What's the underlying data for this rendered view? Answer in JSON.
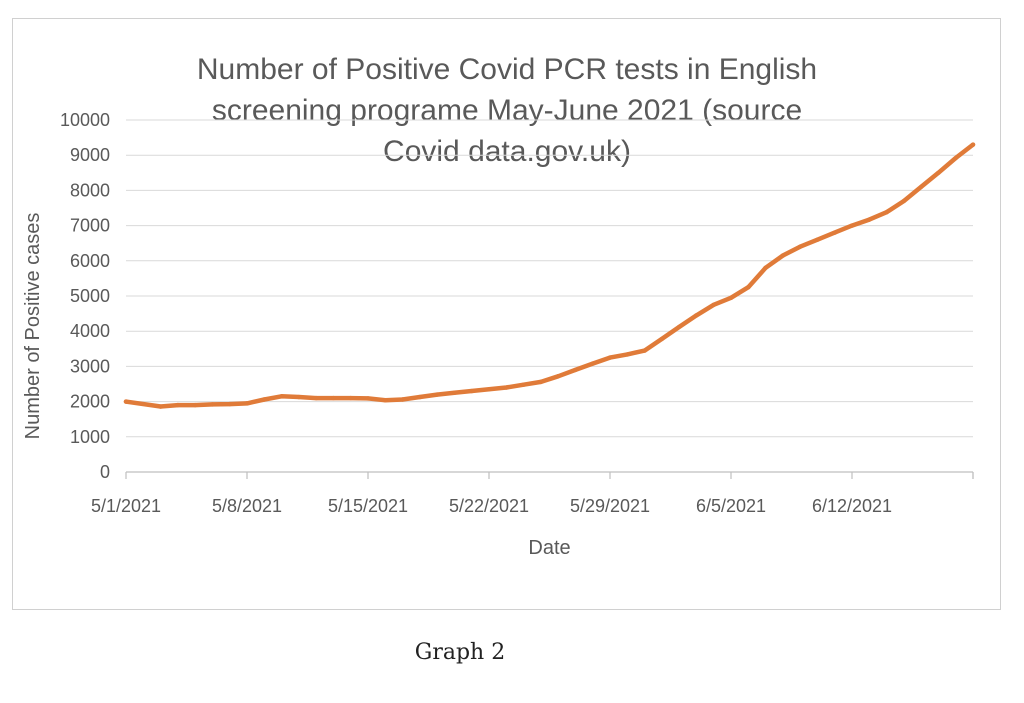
{
  "caption": "Graph 2",
  "colors": {
    "series": "#E07B39",
    "grid": "#d9d9d9",
    "text": "#595959",
    "axis": "#bfbfbf"
  },
  "chart_data": {
    "type": "line",
    "title_lines": [
      "Number of Positive Covid PCR tests in English",
      "screening programe May-June 2021 (source",
      "Covid data.gov.uk)"
    ],
    "xlabel": "Date",
    "ylabel": "Number of Positive cases",
    "ylim": [
      0,
      10000
    ],
    "yticks": [
      0,
      1000,
      2000,
      3000,
      4000,
      5000,
      6000,
      7000,
      8000,
      9000,
      10000
    ],
    "xlim": [
      "5/1/2021",
      "6/19/2021"
    ],
    "xticks": [
      "5/1/2021",
      "5/8/2021",
      "5/15/2021",
      "5/22/2021",
      "5/29/2021",
      "6/5/2021",
      "6/12/2021"
    ],
    "grid": true,
    "legend": "none",
    "series": [
      {
        "x": [
          "5/1/2021",
          "5/3/2021",
          "5/4/2021",
          "5/5/2021",
          "5/6/2021",
          "5/7/2021",
          "5/8/2021",
          "5/9/2021",
          "5/10/2021",
          "5/11/2021",
          "5/12/2021",
          "5/13/2021",
          "5/14/2021",
          "5/15/2021",
          "5/16/2021",
          "5/17/2021",
          "5/18/2021",
          "5/19/2021",
          "5/20/2021",
          "5/21/2021",
          "5/22/2021",
          "5/23/2021",
          "5/24/2021",
          "5/25/2021",
          "5/26/2021",
          "5/27/2021",
          "5/28/2021",
          "5/29/2021",
          "5/30/2021",
          "5/31/2021",
          "6/1/2021",
          "6/2/2021",
          "6/3/2021",
          "6/4/2021",
          "6/5/2021",
          "6/6/2021",
          "6/7/2021",
          "6/8/2021",
          "6/9/2021",
          "6/10/2021",
          "6/11/2021",
          "6/12/2021",
          "6/13/2021",
          "6/14/2021",
          "6/15/2021",
          "6/16/2021",
          "6/17/2021",
          "6/18/2021",
          "6/19/2021"
        ],
        "values": [
          2000,
          1860,
          1900,
          1900,
          1920,
          1930,
          1950,
          2060,
          2150,
          2130,
          2100,
          2100,
          2100,
          2090,
          2040,
          2060,
          2130,
          2200,
          2250,
          2300,
          2350,
          2400,
          2480,
          2560,
          2720,
          2900,
          3080,
          3250,
          3340,
          3450,
          3780,
          4120,
          4450,
          4750,
          4950,
          5250,
          5800,
          6150,
          6400,
          6600,
          6800,
          7000,
          7170,
          7380,
          7700,
          8100,
          8500,
          8920,
          9300
        ]
      }
    ]
  }
}
